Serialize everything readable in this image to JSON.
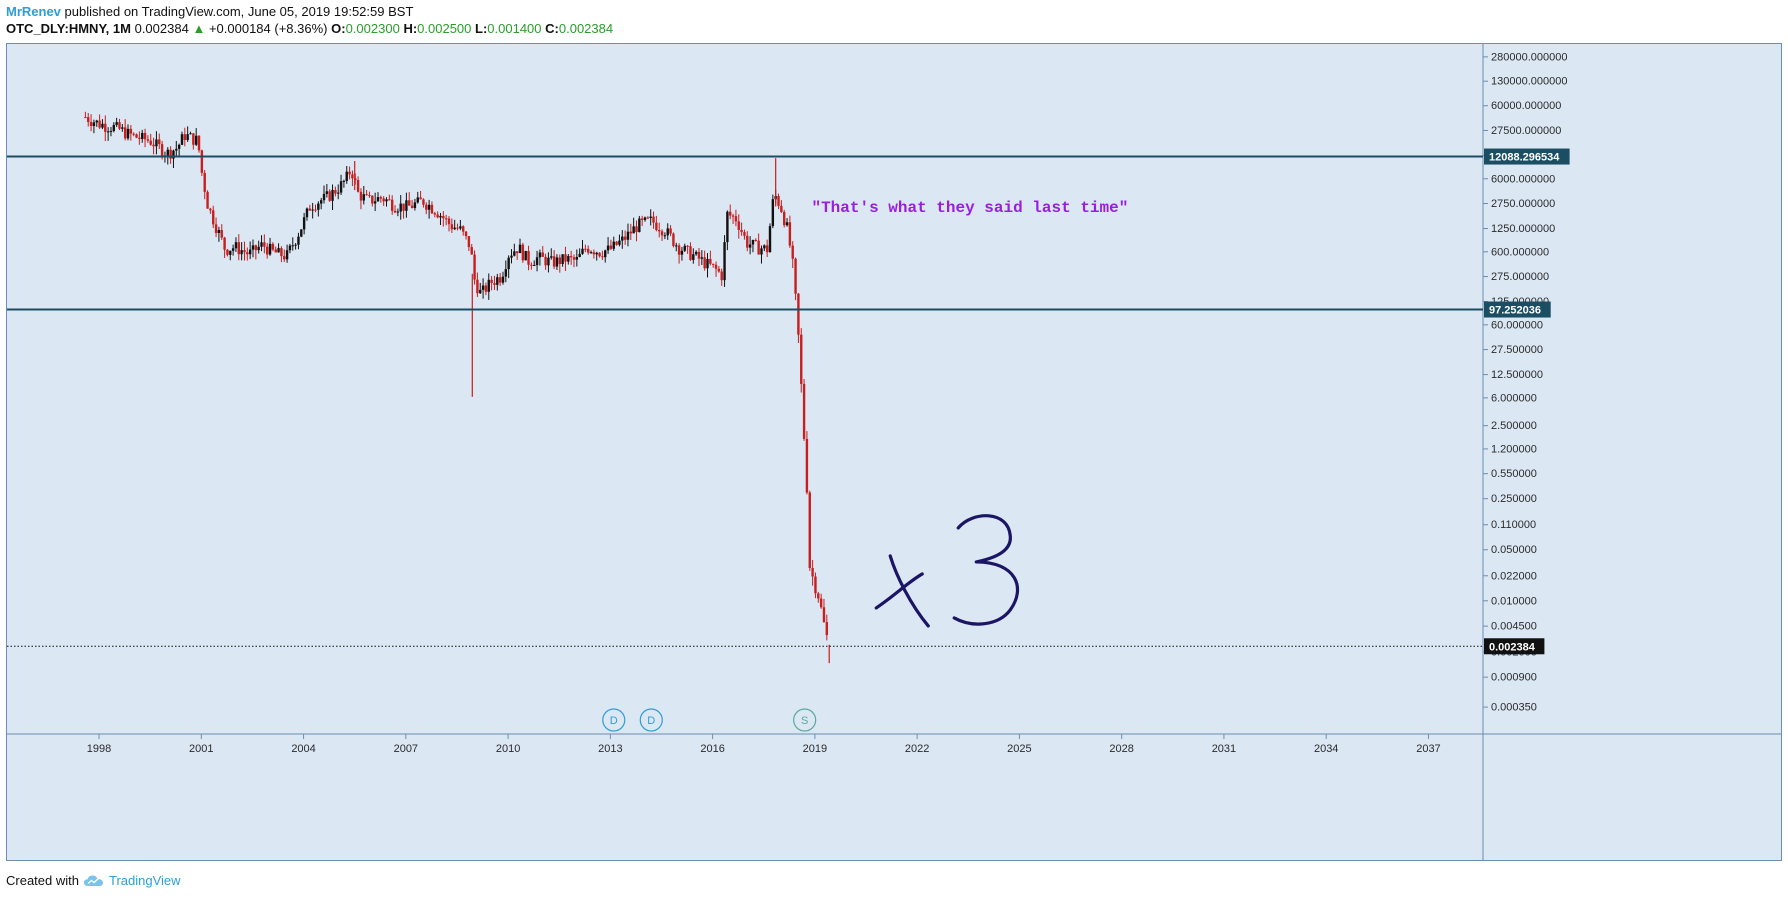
{
  "header": {
    "author": "MrRenev",
    "published_text": "published on TradingView.com, June 05, 2019 19:52:59 BST",
    "symbol": "OTC_DLY:HMNY, 1M",
    "last_price": "0.002384",
    "change_arrow": "▲",
    "change": "+0.000184 (+8.36%)",
    "o_label": "O:",
    "o_value": "0.002300",
    "h_label": "H:",
    "h_value": "0.002500",
    "l_label": "L:",
    "l_value": "0.001400",
    "c_label": "C:",
    "c_value": "0.002384"
  },
  "footer": {
    "created_with": "Created with",
    "brand": "TradingView",
    "brand_icon": "tradingview-cloud-icon"
  },
  "chart_data": {
    "type": "candlestick",
    "scale": "log",
    "xlim": [
      1995.3,
      2038.6
    ],
    "ylim": [
      0.00015,
      420000
    ],
    "y_ticks": [
      "280000.000000",
      "130000.000000",
      "60000.000000",
      "27500.000000",
      "12500.000000",
      "6000.000000",
      "2750.000000",
      "1250.000000",
      "600.000000",
      "275.000000",
      "125.000000",
      "60.000000",
      "27.500000",
      "12.500000",
      "6.000000",
      "2.500000",
      "1.200000",
      "0.550000",
      "0.250000",
      "0.110000",
      "0.050000",
      "0.022000",
      "0.010000",
      "0.004500",
      "0.002000",
      "0.000900",
      "0.000350"
    ],
    "x_ticks": [
      "1998",
      "2001",
      "2004",
      "2007",
      "2010",
      "2013",
      "2016",
      "2019",
      "2022",
      "2025",
      "2028",
      "2031",
      "2034",
      "2037"
    ],
    "horizontal_lines": [
      {
        "value": 12088.296534,
        "label": "12088.296534",
        "color": "#1c4e63"
      },
      {
        "value": 97.252036,
        "label": "97.252036",
        "color": "#1c4e63"
      }
    ],
    "last_price_line": {
      "value": 0.002384,
      "label": "0.002384"
    },
    "annotations": [
      {
        "text": "\"That's what they said last time\"",
        "x": 2018.9,
        "y": 2100,
        "color": "#9a1ee0"
      },
      {
        "text": "x3",
        "x": 2020.8,
        "y": 0.03,
        "color": "#1c1465",
        "kind": "handwritten"
      }
    ],
    "event_markers": [
      {
        "label": "D",
        "x": 2013.1,
        "type": "dividend"
      },
      {
        "label": "D",
        "x": 2014.2,
        "type": "dividend"
      },
      {
        "label": "S",
        "x": 2018.7,
        "type": "split"
      }
    ],
    "colors": {
      "up": "#111111",
      "down": "#c81e1e",
      "background": "#dbe7f3",
      "axis_text": "#2b2b2b"
    },
    "path": [
      [
        1997.6,
        42000
      ],
      [
        1998.0,
        34000
      ],
      [
        1998.5,
        30000
      ],
      [
        1999.0,
        23000
      ],
      [
        1999.5,
        20000
      ],
      [
        2000.0,
        13500
      ],
      [
        2000.3,
        16000
      ],
      [
        2000.5,
        24000
      ],
      [
        2000.9,
        20000
      ],
      [
        2001.0,
        8000
      ],
      [
        2001.2,
        2500
      ],
      [
        2001.4,
        1500
      ],
      [
        2001.7,
        650
      ],
      [
        2002.0,
        700
      ],
      [
        2002.4,
        560
      ],
      [
        2002.8,
        750
      ],
      [
        2003.1,
        600
      ],
      [
        2003.5,
        520
      ],
      [
        2003.9,
        1200
      ],
      [
        2004.2,
        2600
      ],
      [
        2004.6,
        3200
      ],
      [
        2004.9,
        4000
      ],
      [
        2005.2,
        5500
      ],
      [
        2005.4,
        8200
      ],
      [
        2005.6,
        3800
      ],
      [
        2005.9,
        3000
      ],
      [
        2006.3,
        3300
      ],
      [
        2006.7,
        2600
      ],
      [
        2007.1,
        2500
      ],
      [
        2007.5,
        3000
      ],
      [
        2007.9,
        2200
      ],
      [
        2008.3,
        1400
      ],
      [
        2008.6,
        1200
      ],
      [
        2008.9,
        700
      ],
      [
        2009.0,
        260
      ],
      [
        2009.2,
        160
      ],
      [
        2009.5,
        230
      ],
      [
        2009.8,
        280
      ],
      [
        2010.0,
        550
      ],
      [
        2010.3,
        700
      ],
      [
        2010.6,
        450
      ],
      [
        2010.9,
        500
      ],
      [
        2011.3,
        430
      ],
      [
        2011.7,
        480
      ],
      [
        2012.0,
        450
      ],
      [
        2012.3,
        700
      ],
      [
        2012.7,
        600
      ],
      [
        2013.0,
        650
      ],
      [
        2013.4,
        900
      ],
      [
        2013.8,
        1400
      ],
      [
        2014.2,
        1600
      ],
      [
        2014.6,
        1200
      ],
      [
        2015.0,
        700
      ],
      [
        2015.4,
        550
      ],
      [
        2015.8,
        420
      ],
      [
        2016.1,
        340
      ],
      [
        2016.3,
        280
      ],
      [
        2016.4,
        2000
      ],
      [
        2016.7,
        1700
      ],
      [
        2017.0,
        800
      ],
      [
        2017.3,
        700
      ],
      [
        2017.6,
        650
      ],
      [
        2017.8,
        3800
      ],
      [
        2018.0,
        2500
      ],
      [
        2018.2,
        1200
      ],
      [
        2018.35,
        400
      ],
      [
        2018.45,
        110
      ],
      [
        2018.55,
        25
      ],
      [
        2018.65,
        3
      ],
      [
        2018.75,
        0.6
      ],
      [
        2018.85,
        0.03
      ],
      [
        2018.95,
        0.02
      ],
      [
        2019.1,
        0.012
      ],
      [
        2019.2,
        0.007
      ],
      [
        2019.3,
        0.004
      ],
      [
        2019.42,
        0.002384
      ]
    ],
    "spikes": [
      {
        "x": 2008.95,
        "high": 300,
        "low": 6.2
      },
      {
        "x": 2005.5,
        "high": 10500,
        "low": 4200
      },
      {
        "x": 2017.85,
        "high": 11500,
        "low": 2500
      },
      {
        "x": 2019.42,
        "high": 0.0025,
        "low": 0.0014
      }
    ]
  }
}
